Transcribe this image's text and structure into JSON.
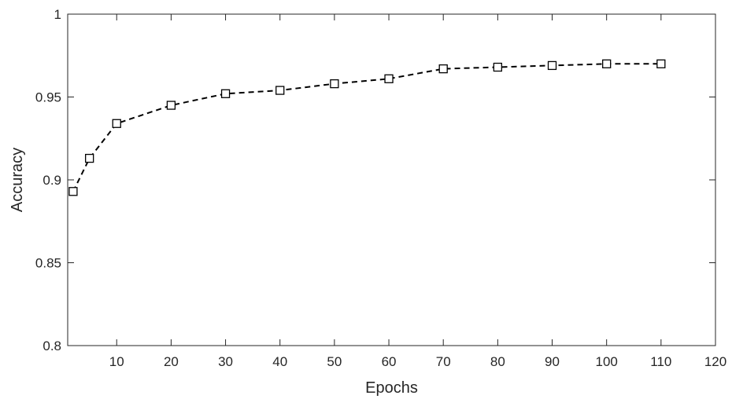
{
  "chart_data": {
    "type": "line",
    "xlabel": "Epochs",
    "ylabel": "Accuracy",
    "xlim": [
      1,
      120
    ],
    "ylim": [
      0.8,
      1
    ],
    "xticks": [
      10,
      20,
      30,
      40,
      50,
      60,
      70,
      80,
      90,
      100,
      110,
      120
    ],
    "yticks": [
      0.8,
      0.85,
      0.9,
      0.95,
      1
    ],
    "ytick_labels": [
      "0.8",
      "0.85",
      "0.9",
      "0.95",
      "1"
    ],
    "grid": false,
    "line_style": "dashed",
    "marker": "square",
    "color": "#000000",
    "series": [
      {
        "x": [
          2,
          5,
          10,
          20,
          30,
          40,
          50,
          60,
          70,
          80,
          90,
          100,
          110
        ],
        "values": [
          0.893,
          0.913,
          0.934,
          0.945,
          0.952,
          0.954,
          0.958,
          0.961,
          0.967,
          0.968,
          0.969,
          0.97,
          0.97
        ]
      }
    ]
  }
}
